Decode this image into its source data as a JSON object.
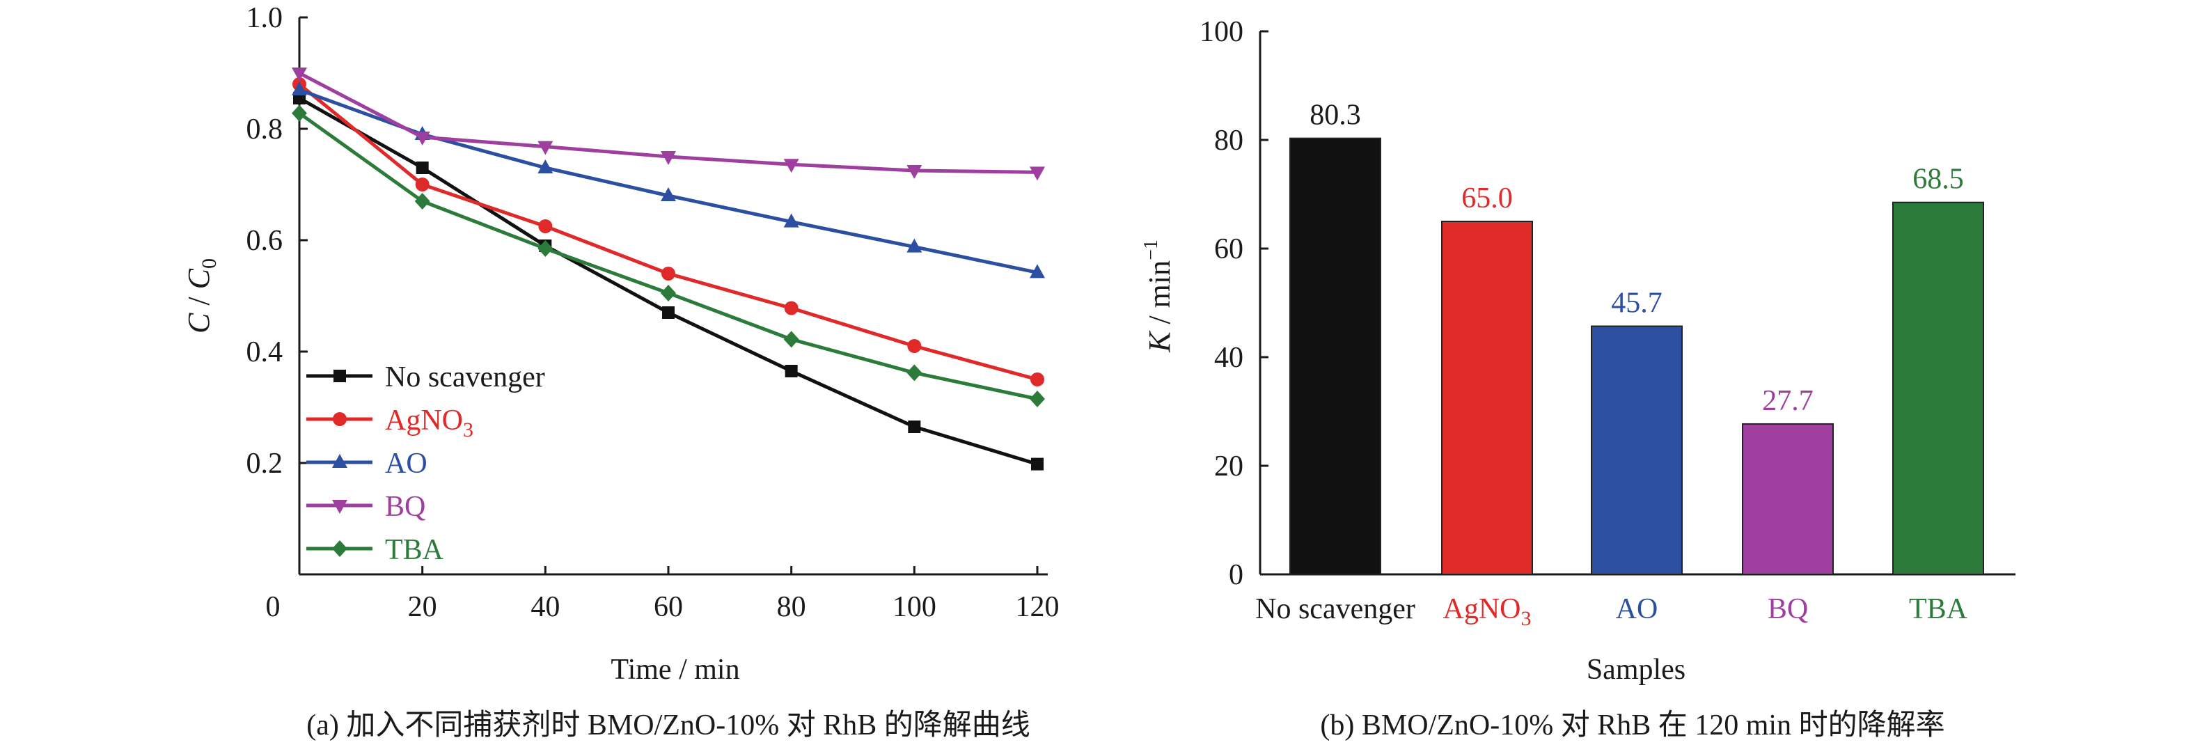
{
  "colors": {
    "no_scavenger": "#111111",
    "agno3": "#e02a2a",
    "ao": "#2d4fa2",
    "bq": "#9e3fa0",
    "tba": "#2d7b3b"
  },
  "chart_data": [
    {
      "type": "line",
      "xlabel": "Time / min",
      "ylabel": "C / C0",
      "xlim": [
        0,
        120
      ],
      "ylim": [
        0.0,
        1.0
      ],
      "x_tick_labels": [
        "0",
        "20",
        "40",
        "60",
        "80",
        "100",
        "120"
      ],
      "x_tick_values": [
        0,
        20,
        40,
        60,
        80,
        100,
        120
      ],
      "y_tick_labels": [
        "0.2",
        "0.4",
        "0.6",
        "0.8",
        "1.0"
      ],
      "y_tick_values": [
        0.2,
        0.4,
        0.6,
        0.8,
        1.0
      ],
      "grid": false,
      "legend_position": "bottom-left",
      "x": [
        0,
        20,
        40,
        60,
        80,
        100,
        120
      ],
      "series": [
        {
          "name": "No scavenger",
          "legend_main": "No scavenger",
          "legend_sub": "",
          "marker": "square",
          "color_key": "no_scavenger",
          "values": [
            0.855,
            0.73,
            0.59,
            0.47,
            0.365,
            0.265,
            0.198
          ]
        },
        {
          "name": "AgNO3",
          "legend_main": "AgNO",
          "legend_sub": "3",
          "marker": "circle",
          "color_key": "agno3",
          "values": [
            0.88,
            0.7,
            0.625,
            0.54,
            0.478,
            0.41,
            0.35
          ]
        },
        {
          "name": "AO",
          "legend_main": "AO",
          "legend_sub": "",
          "marker": "triangle-up",
          "color_key": "ao",
          "values": [
            0.87,
            0.79,
            0.73,
            0.68,
            0.633,
            0.588,
            0.542
          ]
        },
        {
          "name": "BQ",
          "legend_main": "BQ",
          "legend_sub": "",
          "marker": "triangle-down",
          "color_key": "bq",
          "values": [
            0.9,
            0.785,
            0.768,
            0.75,
            0.736,
            0.725,
            0.722
          ]
        },
        {
          "name": "TBA",
          "legend_main": "TBA",
          "legend_sub": "",
          "marker": "diamond",
          "color_key": "tba",
          "values": [
            0.828,
            0.67,
            0.585,
            0.505,
            0.422,
            0.362,
            0.315
          ]
        }
      ],
      "caption": "(a) 加入不同捕获剂时 BMO/ZnO-10% 对 RhB 的降解曲线"
    },
    {
      "type": "bar",
      "xlabel": "Samples",
      "ylabel": "K / min⁻¹",
      "ylim": [
        0,
        100
      ],
      "y_tick_labels": [
        "0",
        "20",
        "40",
        "60",
        "80",
        "100"
      ],
      "y_tick_values": [
        0,
        20,
        40,
        60,
        80,
        100
      ],
      "grid": false,
      "categories": [
        "No scavenger",
        "AgNO3",
        "AO",
        "BQ",
        "TBA"
      ],
      "category_main": [
        "No scavenger",
        "AgNO",
        "AO",
        "BQ",
        "TBA"
      ],
      "category_sub": [
        "",
        "3",
        "",
        "",
        ""
      ],
      "values": [
        80.3,
        65.0,
        45.7,
        27.7,
        68.5
      ],
      "value_labels": [
        "80.3",
        "65.0",
        "45.7",
        "27.7",
        "68.5"
      ],
      "color_keys": [
        "no_scavenger",
        "agno3",
        "ao",
        "bq",
        "tba"
      ],
      "caption": "(b) BMO/ZnO-10% 对 RhB 在 120 min 时的降解率"
    }
  ]
}
